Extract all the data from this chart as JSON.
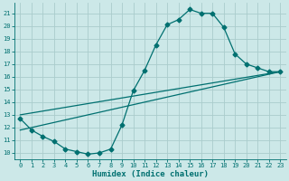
{
  "xlabel": "Humidex (Indice chaleur)",
  "bg_color": "#cce8e8",
  "line_color": "#007070",
  "grid_color": "#aacccc",
  "xlim": [
    -0.5,
    23.5
  ],
  "ylim": [
    9.5,
    21.8
  ],
  "xticks": [
    0,
    1,
    2,
    3,
    4,
    5,
    6,
    7,
    8,
    9,
    10,
    11,
    12,
    13,
    14,
    15,
    16,
    17,
    18,
    19,
    20,
    21,
    22,
    23
  ],
  "yticks": [
    10,
    11,
    12,
    13,
    14,
    15,
    16,
    17,
    18,
    19,
    20,
    21
  ],
  "line1_x": [
    0,
    1,
    2,
    3,
    4,
    5,
    6,
    7,
    8,
    9,
    10,
    11,
    12,
    13,
    14,
    15,
    16,
    17,
    18,
    19,
    20,
    21,
    22,
    23
  ],
  "line1_y": [
    12.7,
    11.8,
    11.3,
    10.9,
    10.3,
    10.1,
    9.9,
    10.0,
    10.3,
    12.2,
    14.9,
    16.5,
    18.5,
    20.1,
    20.5,
    21.3,
    21.0,
    21.0,
    19.9,
    17.8,
    17.0,
    16.7,
    16.4,
    16.4
  ],
  "line2_x": [
    0,
    23
  ],
  "line2_y": [
    11.8,
    16.4
  ],
  "line3_x": [
    0,
    23
  ],
  "line3_y": [
    13.0,
    16.4
  ],
  "marker_size": 2.5,
  "linewidth": 0.9
}
